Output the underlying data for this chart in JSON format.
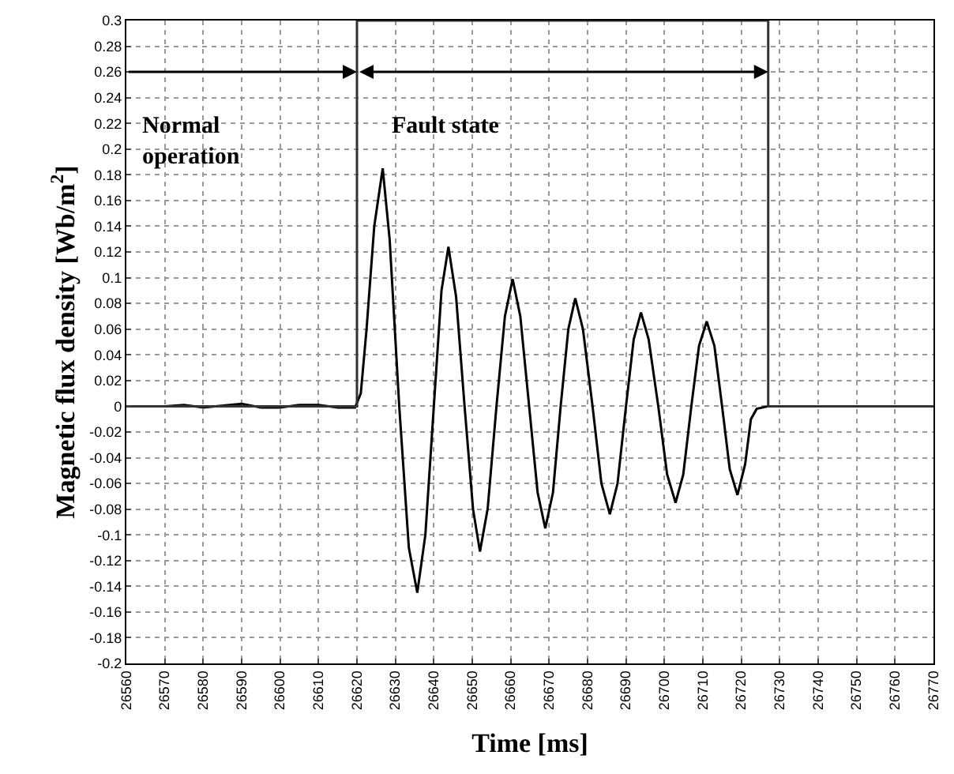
{
  "chart_data": {
    "type": "line",
    "xlabel": "Time [ms]",
    "ylabel": "Magnetic flux density [Wb/m$^{2}$]",
    "xlim": [
      26560,
      26770
    ],
    "xticks": [
      26560,
      26570,
      26580,
      26590,
      26600,
      26610,
      26620,
      26630,
      26640,
      26650,
      26660,
      26670,
      26680,
      26690,
      26700,
      26710,
      26720,
      26730,
      26740,
      26750,
      26760,
      26770
    ],
    "ylim": [
      -0.2,
      0.3
    ],
    "yticks": [
      -0.2,
      -0.18,
      -0.16,
      -0.14,
      -0.12,
      -0.1,
      -0.08,
      -0.06,
      -0.04,
      -0.02,
      0,
      0.02,
      0.04,
      0.06,
      0.08,
      0.1,
      0.12,
      0.14,
      0.16,
      0.18,
      0.2,
      0.22,
      0.24,
      0.26,
      0.28,
      0.3
    ],
    "grid": true,
    "line_style": "solid",
    "annotations": [
      "Normal operation",
      "Fault state"
    ],
    "series": [
      {
        "color": "#000000",
        "x": [
          26560,
          26570,
          26575,
          26580,
          26590,
          26595,
          26600,
          26605,
          26610,
          26615,
          26619.5,
          26621,
          26622.5,
          26624.5,
          26626.7,
          26628.5,
          26631,
          26633.5,
          26635.7,
          26637.8,
          26640,
          26642,
          26643.8,
          26645.8,
          26648,
          26650.2,
          26652,
          26654,
          26656.3,
          26658.5,
          26660.5,
          26662.5,
          26664.8,
          26667,
          26669,
          26671,
          26673,
          26675,
          26676.8,
          26678.8,
          26681.3,
          26683.6,
          26685.8,
          26687.8,
          26690,
          26692,
          26693.9,
          26695.9,
          26698.4,
          26700.7,
          26702.9,
          26704.9,
          26707,
          26709,
          26711,
          26713,
          26715,
          26717,
          26719,
          26721,
          26722.5,
          26724,
          26727,
          26740,
          26760,
          26770
        ],
        "values": [
          0,
          0,
          0.001,
          -0.001,
          0.002,
          -0.001,
          -0.001,
          0.001,
          0.001,
          -0.001,
          -0.001,
          0.01,
          0.06,
          0.14,
          0.185,
          0.13,
          0,
          -0.11,
          -0.145,
          -0.1,
          0,
          0.09,
          0.124,
          0.085,
          0,
          -0.08,
          -0.113,
          -0.08,
          0,
          0.07,
          0.099,
          0.07,
          0,
          -0.067,
          -0.095,
          -0.067,
          0,
          0.06,
          0.084,
          0.06,
          0,
          -0.06,
          -0.084,
          -0.06,
          0,
          0.052,
          0.073,
          0.052,
          0,
          -0.053,
          -0.075,
          -0.053,
          0,
          0.047,
          0.066,
          0.047,
          0,
          -0.049,
          -0.069,
          -0.045,
          -0.01,
          -0.002,
          0,
          0,
          0,
          0
        ]
      },
      {
        "color": "#333333",
        "type": "step",
        "x": [
          26560,
          26620,
          26727,
          26770
        ],
        "values": [
          0,
          0.3,
          0,
          0
        ]
      }
    ]
  }
}
